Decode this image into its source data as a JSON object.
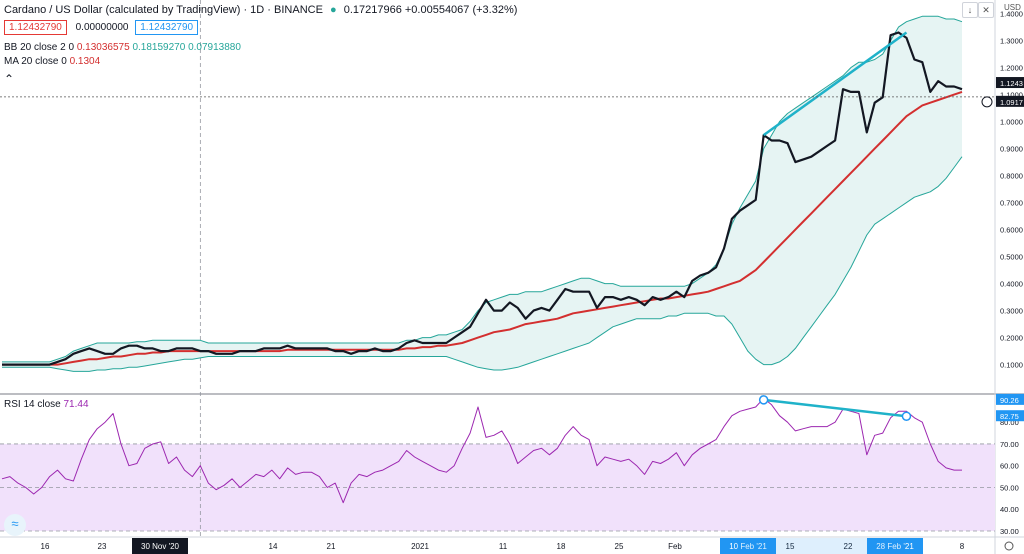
{
  "header": {
    "title": "Cardano / US Dollar (calculated by TradingView) · 1D · BINANCE",
    "ohlc": "0.17217966 +0.00554067 (+3.32%)",
    "box_sell": "1.12432790",
    "box_spread": "0.00000000",
    "box_buy": "1.12432790",
    "bb_label": "BB 20 close 2 0",
    "bb_values": [
      "0.13036575",
      "0.18159270",
      "0.07913880"
    ],
    "ma_label": "MA 20 close 0",
    "ma_value": "0.1304",
    "rsi_label": "RSI 14 close",
    "rsi_value": "71.44",
    "currency": "USD"
  },
  "colors": {
    "price": "#131722",
    "ma": "#d32f2f",
    "bb": "#26a69a",
    "bb_fill": "#e6f4f3",
    "trend": "#1fb2c9",
    "rsi": "#9c27b0",
    "rsi_band": "#f1e1fb"
  },
  "chart_data": [
    {
      "type": "line",
      "title": "Cardano / US Dollar (calculated by TradingView) · 1D · BINANCE",
      "x_ticks": [
        "16",
        "23",
        "30 Nov '20",
        "14",
        "21",
        "2021",
        "11",
        "18",
        "25",
        "Feb",
        "10 Feb '21",
        "15",
        "22",
        "28 Feb '21",
        "8"
      ],
      "y_ticks": [
        "0.1000",
        "0.2000",
        "0.3000",
        "0.4000",
        "0.5000",
        "0.6000",
        "0.7000",
        "0.8000",
        "0.9000",
        "1.0000",
        "1.1000",
        "1.2000",
        "1.3000",
        "1.4000"
      ],
      "ylim": [
        0,
        1.42
      ],
      "price_labels": [
        "1.1243",
        "1.0917"
      ],
      "series": [
        {
          "name": "Close",
          "values": [
            0.1,
            0.1,
            0.1,
            0.1,
            0.1,
            0.1,
            0.1,
            0.11,
            0.12,
            0.14,
            0.15,
            0.16,
            0.15,
            0.14,
            0.14,
            0.16,
            0.17,
            0.17,
            0.16,
            0.16,
            0.15,
            0.15,
            0.16,
            0.16,
            0.16,
            0.15,
            0.15,
            0.14,
            0.14,
            0.14,
            0.15,
            0.15,
            0.15,
            0.16,
            0.16,
            0.16,
            0.17,
            0.16,
            0.16,
            0.16,
            0.16,
            0.16,
            0.15,
            0.15,
            0.14,
            0.15,
            0.15,
            0.16,
            0.15,
            0.15,
            0.16,
            0.18,
            0.19,
            0.18,
            0.18,
            0.18,
            0.18,
            0.2,
            0.22,
            0.24,
            0.29,
            0.34,
            0.3,
            0.3,
            0.33,
            0.31,
            0.27,
            0.3,
            0.31,
            0.3,
            0.34,
            0.38,
            0.37,
            0.37,
            0.37,
            0.31,
            0.35,
            0.35,
            0.34,
            0.35,
            0.34,
            0.32,
            0.35,
            0.34,
            0.35,
            0.37,
            0.35,
            0.41,
            0.43,
            0.44,
            0.46,
            0.53,
            0.64,
            0.67,
            0.69,
            0.71,
            0.95,
            0.93,
            0.93,
            0.92,
            0.85,
            0.86,
            0.87,
            0.89,
            0.91,
            0.93,
            1.12,
            1.11,
            1.11,
            0.96,
            1.07,
            1.09,
            1.32,
            1.33,
            1.31,
            1.23,
            1.22,
            1.11,
            1.15,
            1.13,
            1.13,
            1.12
          ]
        },
        {
          "name": "MA 20",
          "values": [
            0.1,
            0.1,
            0.1,
            0.1,
            0.1,
            0.1,
            0.1,
            0.1,
            0.105,
            0.11,
            0.115,
            0.12,
            0.12,
            0.125,
            0.13,
            0.13,
            0.135,
            0.14,
            0.14,
            0.145,
            0.145,
            0.15,
            0.15,
            0.15,
            0.15,
            0.15,
            0.15,
            0.15,
            0.15,
            0.15,
            0.15,
            0.15,
            0.15,
            0.15,
            0.15,
            0.15,
            0.155,
            0.155,
            0.155,
            0.155,
            0.155,
            0.155,
            0.155,
            0.155,
            0.155,
            0.155,
            0.155,
            0.155,
            0.155,
            0.155,
            0.155,
            0.16,
            0.16,
            0.165,
            0.165,
            0.17,
            0.17,
            0.175,
            0.18,
            0.19,
            0.2,
            0.21,
            0.22,
            0.225,
            0.23,
            0.24,
            0.25,
            0.255,
            0.26,
            0.265,
            0.27,
            0.28,
            0.29,
            0.295,
            0.3,
            0.305,
            0.31,
            0.315,
            0.32,
            0.325,
            0.33,
            0.335,
            0.34,
            0.345,
            0.345,
            0.35,
            0.355,
            0.36,
            0.365,
            0.37,
            0.38,
            0.39,
            0.4,
            0.41,
            0.43,
            0.45,
            0.48,
            0.51,
            0.54,
            0.57,
            0.6,
            0.63,
            0.66,
            0.69,
            0.72,
            0.75,
            0.78,
            0.81,
            0.84,
            0.87,
            0.9,
            0.93,
            0.96,
            0.99,
            1.02,
            1.04,
            1.06,
            1.07,
            1.08,
            1.09,
            1.1,
            1.11
          ]
        },
        {
          "name": "BB upper",
          "values": [
            0.11,
            0.11,
            0.11,
            0.11,
            0.11,
            0.11,
            0.11,
            0.12,
            0.13,
            0.15,
            0.16,
            0.17,
            0.18,
            0.18,
            0.18,
            0.18,
            0.18,
            0.185,
            0.185,
            0.19,
            0.19,
            0.19,
            0.19,
            0.19,
            0.19,
            0.19,
            0.18,
            0.18,
            0.18,
            0.18,
            0.18,
            0.18,
            0.18,
            0.18,
            0.18,
            0.18,
            0.18,
            0.18,
            0.18,
            0.18,
            0.18,
            0.18,
            0.18,
            0.18,
            0.18,
            0.18,
            0.18,
            0.18,
            0.18,
            0.18,
            0.18,
            0.19,
            0.19,
            0.2,
            0.2,
            0.21,
            0.21,
            0.22,
            0.23,
            0.26,
            0.3,
            0.33,
            0.34,
            0.35,
            0.36,
            0.36,
            0.37,
            0.37,
            0.37,
            0.38,
            0.39,
            0.4,
            0.41,
            0.42,
            0.42,
            0.41,
            0.4,
            0.4,
            0.39,
            0.39,
            0.39,
            0.39,
            0.39,
            0.39,
            0.39,
            0.39,
            0.39,
            0.4,
            0.42,
            0.44,
            0.47,
            0.53,
            0.62,
            0.68,
            0.73,
            0.78,
            0.9,
            0.95,
            1.0,
            1.03,
            1.05,
            1.07,
            1.09,
            1.11,
            1.13,
            1.15,
            1.17,
            1.2,
            1.22,
            1.22,
            1.23,
            1.25,
            1.3,
            1.35,
            1.37,
            1.38,
            1.39,
            1.39,
            1.39,
            1.38,
            1.38,
            1.37
          ]
        },
        {
          "name": "BB lower",
          "values": [
            0.09,
            0.09,
            0.09,
            0.09,
            0.09,
            0.09,
            0.09,
            0.085,
            0.08,
            0.075,
            0.075,
            0.075,
            0.08,
            0.08,
            0.085,
            0.085,
            0.09,
            0.09,
            0.095,
            0.1,
            0.105,
            0.11,
            0.115,
            0.12,
            0.12,
            0.125,
            0.13,
            0.13,
            0.13,
            0.13,
            0.13,
            0.13,
            0.13,
            0.13,
            0.13,
            0.13,
            0.13,
            0.13,
            0.13,
            0.13,
            0.13,
            0.13,
            0.13,
            0.13,
            0.13,
            0.13,
            0.13,
            0.13,
            0.13,
            0.13,
            0.13,
            0.13,
            0.13,
            0.13,
            0.13,
            0.13,
            0.13,
            0.12,
            0.11,
            0.1,
            0.09,
            0.085,
            0.08,
            0.08,
            0.085,
            0.09,
            0.1,
            0.11,
            0.12,
            0.13,
            0.14,
            0.15,
            0.16,
            0.17,
            0.18,
            0.2,
            0.22,
            0.24,
            0.25,
            0.26,
            0.27,
            0.27,
            0.27,
            0.27,
            0.28,
            0.28,
            0.29,
            0.29,
            0.29,
            0.29,
            0.28,
            0.28,
            0.25,
            0.2,
            0.15,
            0.12,
            0.1,
            0.1,
            0.11,
            0.13,
            0.16,
            0.2,
            0.24,
            0.28,
            0.32,
            0.36,
            0.41,
            0.46,
            0.52,
            0.58,
            0.62,
            0.64,
            0.66,
            0.68,
            0.7,
            0.72,
            0.73,
            0.74,
            0.76,
            0.79,
            0.83,
            0.87
          ]
        }
      ],
      "trend_line": {
        "from": [
          96,
          0.95
        ],
        "to": [
          114,
          1.33
        ]
      }
    },
    {
      "type": "line",
      "title": "RSI 14 close",
      "y_ticks": [
        "30.00",
        "40.00",
        "50.00",
        "60.00",
        "70.00",
        "80.00"
      ],
      "ylim": [
        28,
        92
      ],
      "band": [
        30,
        70
      ],
      "value_labels": [
        "90.26",
        "82.75"
      ],
      "series": [
        {
          "name": "RSI",
          "values": [
            54,
            55,
            52,
            50,
            47,
            50,
            55,
            58,
            54,
            53,
            63,
            72,
            77,
            80,
            84,
            70,
            60,
            61,
            68,
            70,
            71,
            61,
            64,
            58,
            55,
            60,
            52,
            49,
            51,
            54,
            50,
            53,
            56,
            55,
            58,
            54,
            59,
            56,
            57,
            57,
            55,
            50,
            52,
            43,
            52,
            56,
            55,
            57,
            58,
            60,
            62,
            67,
            64,
            62,
            60,
            58,
            57,
            60,
            68,
            75,
            87,
            73,
            74,
            76,
            70,
            61,
            64,
            67,
            68,
            65,
            68,
            74,
            78,
            74,
            72,
            60,
            64,
            63,
            62,
            63,
            60,
            56,
            62,
            61,
            63,
            66,
            60,
            65,
            68,
            70,
            72,
            78,
            83,
            85,
            86,
            87,
            91,
            88,
            83,
            80,
            76,
            77,
            78,
            78,
            78,
            80,
            86,
            85,
            84,
            65,
            74,
            75,
            82,
            85,
            85,
            82,
            80,
            70,
            62,
            59,
            58,
            58
          ]
        }
      ],
      "trend_line": {
        "from": [
          96,
          90.26
        ],
        "to": [
          114,
          82.75
        ]
      }
    }
  ]
}
